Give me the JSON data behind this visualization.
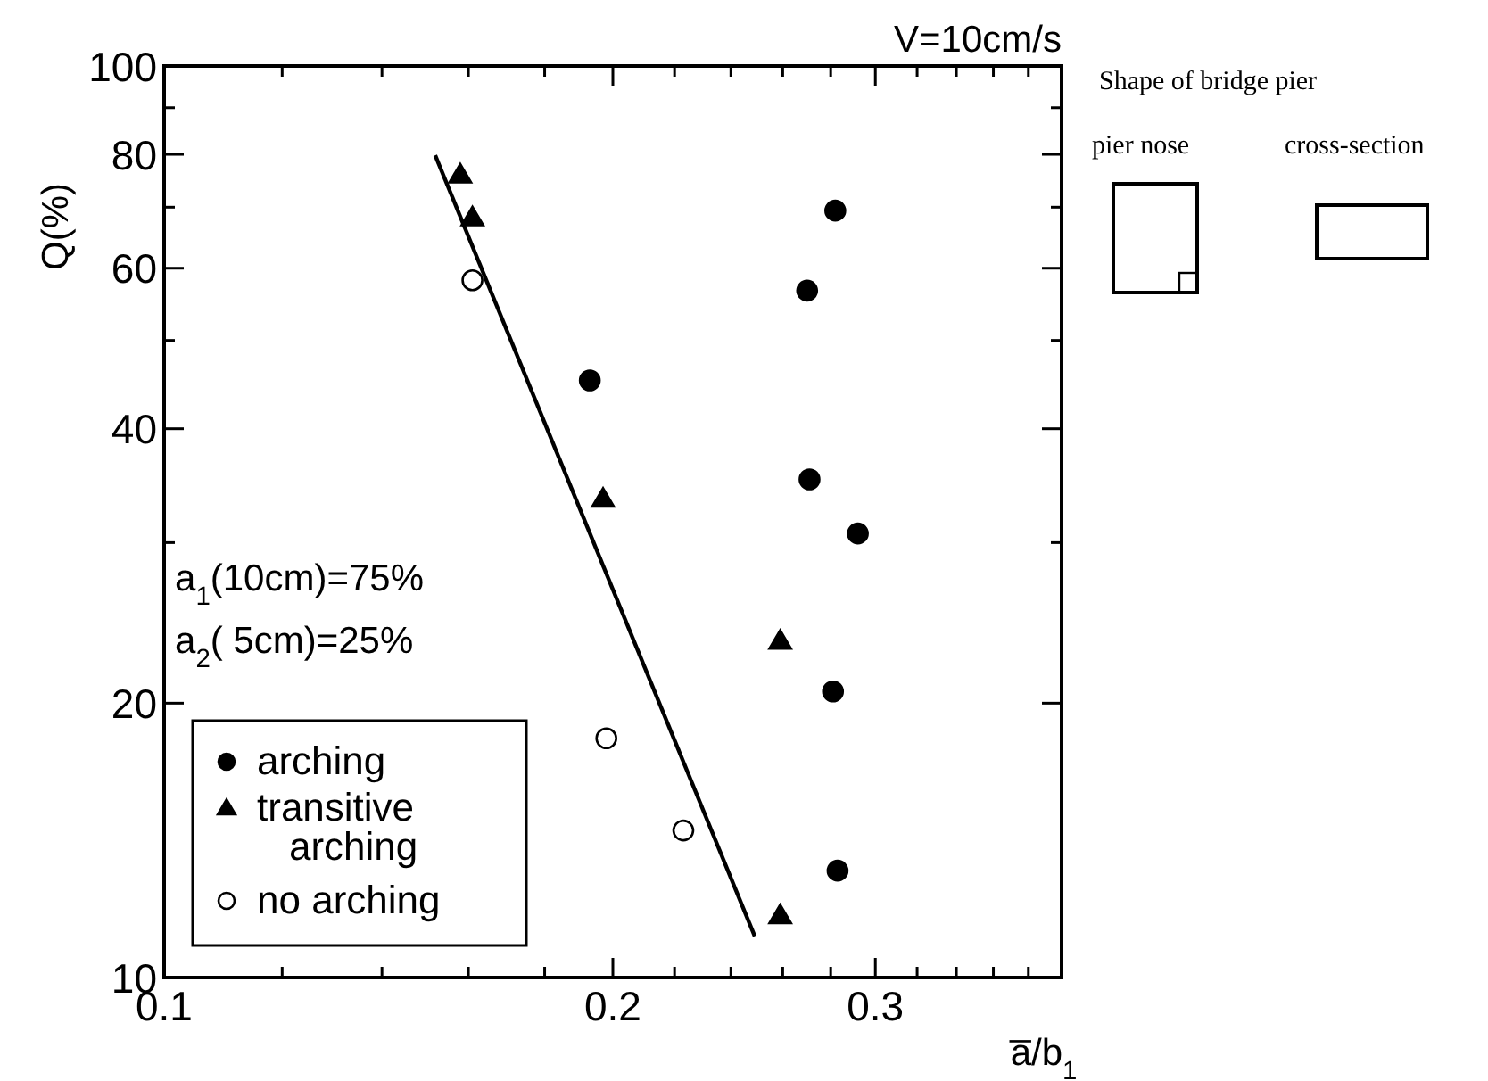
{
  "chart_data": {
    "type": "scatter",
    "title": "V=10cm/s",
    "xlabel": "a̅/b$_{1}$",
    "ylabel": "Q(%)",
    "log": "xy",
    "xlim": [
      0.1,
      0.4
    ],
    "ylim": [
      10,
      100
    ],
    "xticks": [
      0.1,
      {
        "value": 0.12,
        "label": null
      },
      {
        "value": 0.14,
        "label": null
      },
      {
        "value": 0.16,
        "label": null
      },
      {
        "value": 0.18,
        "label": null
      },
      0.2,
      {
        "value": 0.22,
        "label": null
      },
      {
        "value": 0.24,
        "label": null
      },
      {
        "value": 0.26,
        "label": null
      },
      {
        "value": 0.28,
        "label": null
      },
      0.3,
      {
        "value": 0.32,
        "label": null
      },
      {
        "value": 0.34,
        "label": null
      },
      {
        "value": 0.36,
        "label": null
      },
      {
        "value": 0.38,
        "label": null
      }
    ],
    "yticks": [
      10,
      20,
      {
        "value": 30,
        "label": null
      },
      40,
      {
        "value": 50,
        "label": null
      },
      60,
      {
        "value": 70,
        "label": null
      },
      80,
      {
        "value": 90,
        "label": null
      },
      100
    ],
    "grid": false,
    "legend": "bottom left",
    "series": [
      {
        "name": "arching",
        "color": "#000000",
        "marker": "circle",
        "x": [
          0.193,
          0.282,
          0.27,
          0.271,
          0.292,
          0.281,
          0.283
        ],
        "values": [
          45.2,
          69.4,
          56.7,
          35.2,
          30.7,
          20.6,
          13.1
        ]
      },
      {
        "name": "transitive arching",
        "color": "#000000",
        "marker": "triangle",
        "x": [
          0.158,
          0.161,
          0.197,
          0.259,
          0.259
        ],
        "values": [
          76,
          68.2,
          33.5,
          23.4,
          11.7
        ]
      },
      {
        "name": "no arching",
        "color": "#ffffff",
        "marker": "circle",
        "x": [
          0.161,
          0.198,
          0.223
        ],
        "values": [
          58.2,
          18.3,
          14.5
        ]
      },
      {
        "type": "line",
        "color": "#000000",
        "marker": "none",
        "line_style": "solid",
        "x": [
          0.152,
          0.249
        ],
        "values": [
          79.8,
          11.1
        ]
      }
    ],
    "annotations": [
      "a$_{1}$(10cm)=75%",
      "a$_{2}$( 5cm)=25%",
      "Shape of bridge pier",
      "pier nose",
      "cross-section"
    ]
  }
}
